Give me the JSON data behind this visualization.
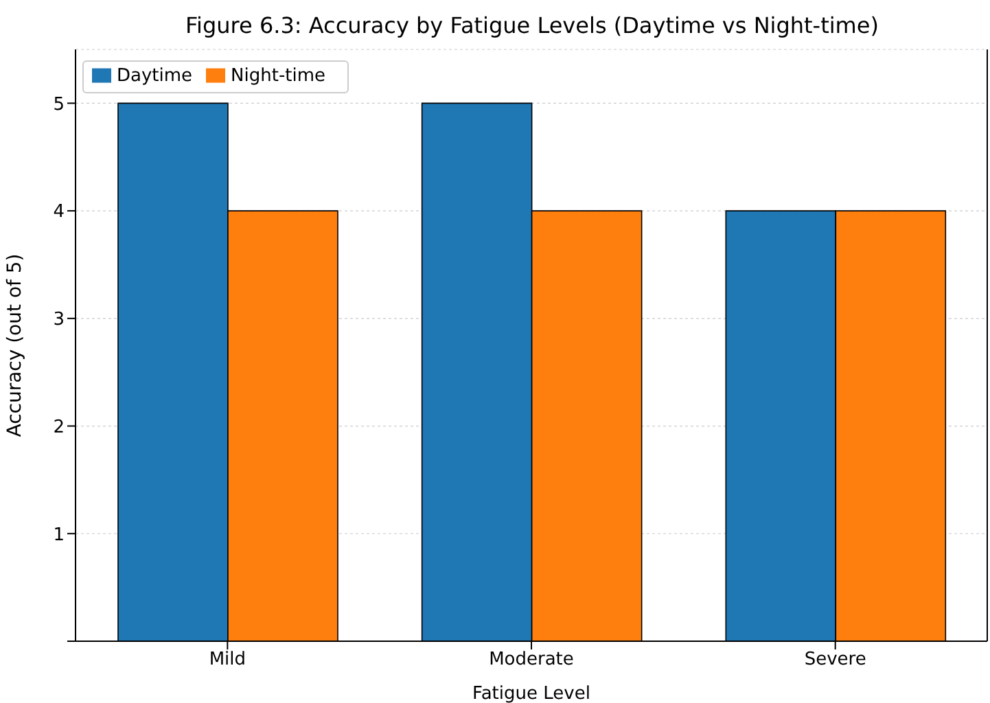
{
  "chart_data": {
    "type": "bar",
    "title": "Figure 6.3: Accuracy by Fatigue Levels (Daytime vs Night-time)",
    "xlabel": "Fatigue Level",
    "ylabel": "Accuracy (out of 5)",
    "categories": [
      "Mild",
      "Moderate",
      "Severe"
    ],
    "series": [
      {
        "name": "Daytime",
        "color": "#1f77b4",
        "values": [
          5,
          5,
          4
        ]
      },
      {
        "name": "Night-time",
        "color": "#ff7f0e",
        "values": [
          4,
          4,
          4
        ]
      }
    ],
    "ylim": [
      0,
      5.5
    ],
    "yticks": [
      {
        "value": 0,
        "label": null
      },
      1,
      2,
      3,
      4,
      5
    ],
    "grid": "y",
    "legend": "top left"
  }
}
